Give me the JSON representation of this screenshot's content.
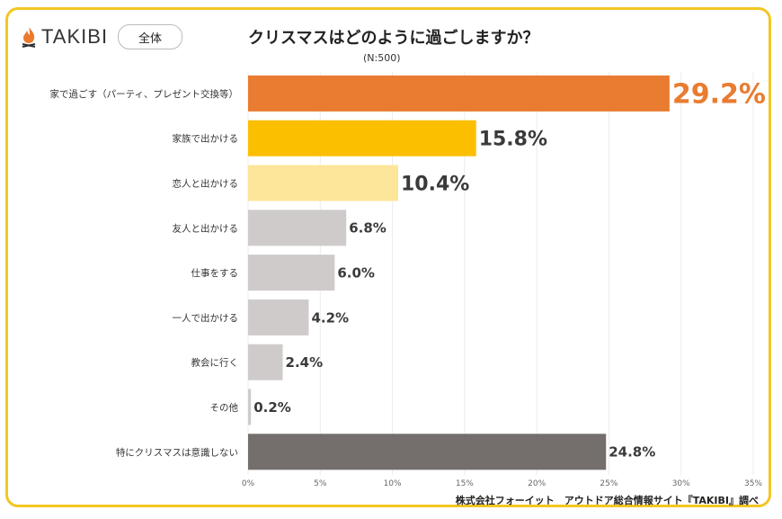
{
  "brand": {
    "name": "TAKIBI",
    "filter_label": "全体"
  },
  "chart_data": {
    "type": "bar",
    "orientation": "horizontal",
    "title": "クリスマスはどのように過ごしますか？",
    "subtitle": "(N:500)",
    "categories": [
      "家で過ごす（パーティ、プレゼント交換等）",
      "家族で出かける",
      "恋人と出かける",
      "友人と出かける",
      "仕事をする",
      "一人で出かける",
      "教会に行く",
      "その他",
      "特にクリスマスは意識しない"
    ],
    "values": [
      29.2,
      15.8,
      10.4,
      6.8,
      6.0,
      4.2,
      2.4,
      0.2,
      24.8
    ],
    "data_labels": [
      "29.2%",
      "15.8%",
      "10.4%",
      "6.8%",
      "6.0%",
      "4.2%",
      "2.4%",
      "0.2%",
      "24.8%"
    ],
    "colors": [
      "#e97c30",
      "#fbbf00",
      "#fde59a",
      "#cfcbcb",
      "#cfcbcb",
      "#cfcbcb",
      "#cfcbcb",
      "#cfcbcb",
      "#746e6c"
    ],
    "xlim": [
      0,
      35
    ],
    "xticks": [
      "0%",
      "5%",
      "10%",
      "15%",
      "20%",
      "25%",
      "30%",
      "35%"
    ],
    "grid": true,
    "source": "株式会社フォーイット　アウトドア総合情報サイト『TAKIBI』調べ"
  }
}
